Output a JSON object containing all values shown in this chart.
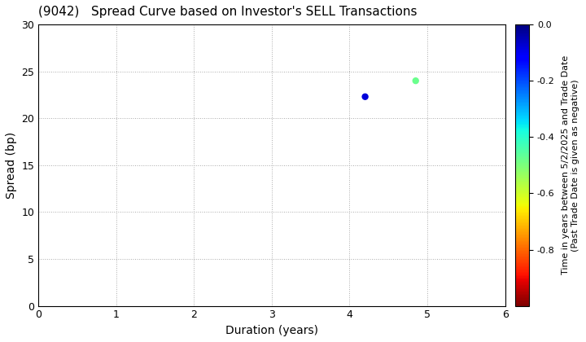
{
  "title": "(9042)   Spread Curve based on Investor's SELL Transactions",
  "xlabel": "Duration (years)",
  "ylabel": "Spread (bp)",
  "colorbar_label": "Time in years between 5/2/2025 and Trade Date\n(Past Trade Date is given as negative)",
  "xlim": [
    0,
    6
  ],
  "ylim": [
    0,
    30
  ],
  "xticks": [
    0,
    1,
    2,
    3,
    4,
    5,
    6
  ],
  "yticks": [
    0,
    5,
    10,
    15,
    20,
    25,
    30
  ],
  "scatter_x": [
    4.2,
    4.85
  ],
  "scatter_y": [
    22.3,
    24.0
  ],
  "scatter_time": [
    -0.08,
    -0.48
  ],
  "colorbar_vmin": -1.0,
  "colorbar_vmax": 0.0,
  "colorbar_ticks": [
    0.0,
    -0.2,
    -0.4,
    -0.6,
    -0.8
  ],
  "marker_size": 25,
  "background_color": "#ffffff",
  "grid_color": "#aaaaaa",
  "title_fontsize": 11,
  "axis_label_fontsize": 10,
  "colorbar_fontsize": 8,
  "tick_fontsize": 9
}
